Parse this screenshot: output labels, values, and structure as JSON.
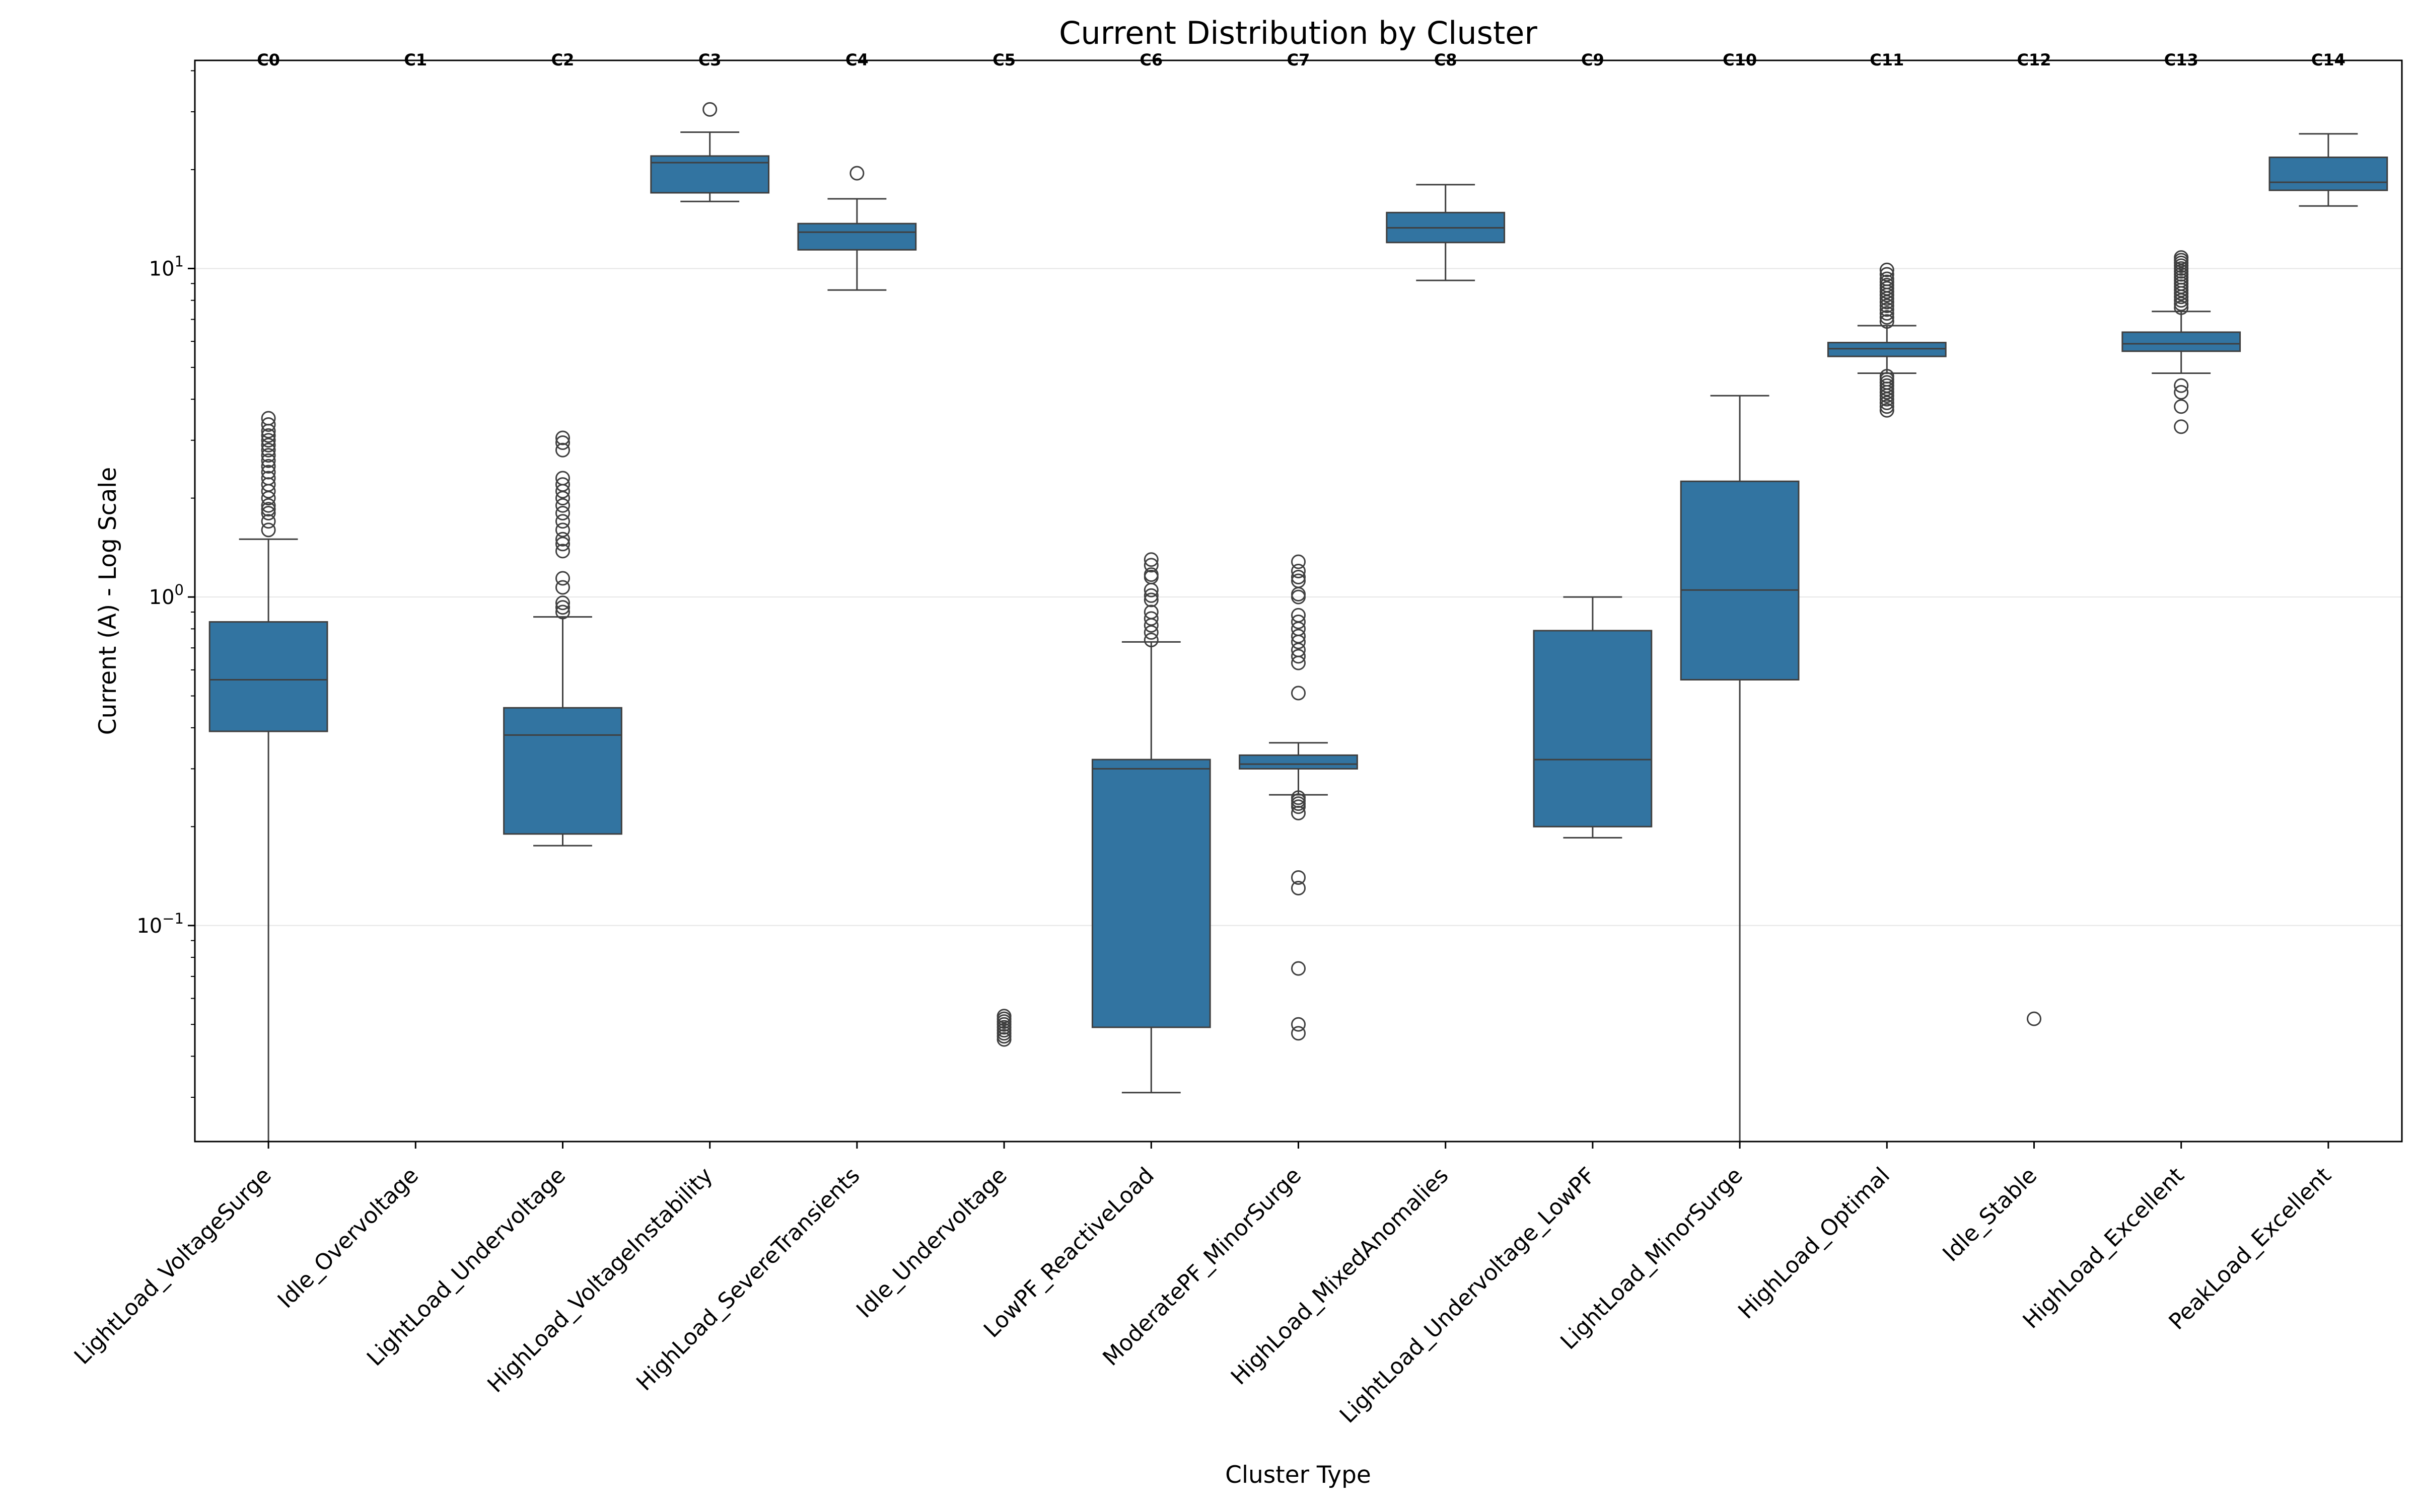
{
  "chart_data": {
    "type": "box",
    "title": "Current Distribution by Cluster",
    "xlabel": "Cluster Type",
    "ylabel": "Current (A) - Log Scale",
    "yscale": "log",
    "ylim": [
      0.022,
      43
    ],
    "yticks": [
      {
        "value": 0.1,
        "base": "10",
        "exp": "−1"
      },
      {
        "value": 1,
        "base": "10",
        "exp": "0"
      },
      {
        "value": 10,
        "base": "10",
        "exp": "1"
      }
    ],
    "grid": "horizontal",
    "box_color": "#3274a1",
    "categories": [
      "LightLoad_VoltageSurge",
      "Idle_Overvoltage",
      "LightLoad_Undervoltage",
      "HighLoad_VoltageInstability",
      "HighLoad_SevereTransients",
      "Idle_Undervoltage",
      "LowPF_ReactiveLoad",
      "ModeratePF_MinorSurge",
      "HighLoad_MixedAnomalies",
      "LightLoad_Undervoltage_LowPF",
      "LightLoad_MinorSurge",
      "HighLoad_Optimal",
      "Idle_Stable",
      "HighLoad_Excellent",
      "PeakLoad_Excellent"
    ],
    "cluster_labels": [
      "C0",
      "C1",
      "C2",
      "C3",
      "C4",
      "C5",
      "C6",
      "C7",
      "C8",
      "C9",
      "C10",
      "C11",
      "C12",
      "C13",
      "C14"
    ],
    "boxes": [
      {
        "whislo": 0.022,
        "q1": 0.39,
        "median": 0.56,
        "q3": 0.84,
        "whishi": 1.5,
        "fliers": [
          1.6,
          1.7,
          1.8,
          1.85,
          1.9,
          2.0,
          2.1,
          2.2,
          2.3,
          2.4,
          2.5,
          2.6,
          2.7,
          2.8,
          2.9,
          3.0,
          3.1,
          3.2,
          3.35,
          3.5
        ]
      },
      null,
      {
        "whislo": 0.175,
        "q1": 0.19,
        "median": 0.38,
        "q3": 0.46,
        "whishi": 0.87,
        "fliers": [
          0.9,
          0.93,
          0.96,
          1.07,
          1.14,
          1.38,
          1.45,
          1.5,
          1.6,
          1.7,
          1.8,
          1.9,
          2.0,
          2.1,
          2.2,
          2.3,
          2.8,
          2.95,
          3.05
        ]
      },
      {
        "whislo": 16.0,
        "q1": 17.0,
        "median": 21.0,
        "q3": 22.0,
        "whishi": 26.0,
        "fliers": [
          30.5
        ]
      },
      {
        "whislo": 8.6,
        "q1": 11.4,
        "median": 12.9,
        "q3": 13.7,
        "whishi": 16.3,
        "fliers": [
          19.5
        ]
      },
      {
        "whislo": null,
        "q1": null,
        "median": null,
        "q3": null,
        "whishi": null,
        "fliers": [
          0.045,
          0.046,
          0.047,
          0.048,
          0.049,
          0.05,
          0.051,
          0.052,
          0.053
        ]
      },
      {
        "whislo": 0.031,
        "q1": 0.049,
        "median": 0.3,
        "q3": 0.32,
        "whishi": 0.73,
        "fliers": [
          0.74,
          0.78,
          0.82,
          0.86,
          0.9,
          0.98,
          1.01,
          1.05,
          1.15,
          1.17,
          1.25,
          1.3
        ]
      },
      {
        "whislo": 0.25,
        "q1": 0.3,
        "median": 0.31,
        "q3": 0.33,
        "whishi": 0.36,
        "fliers": [
          0.047,
          0.05,
          0.074,
          0.13,
          0.14,
          0.22,
          0.23,
          0.235,
          0.24,
          0.245,
          0.51,
          0.63,
          0.66,
          0.69,
          0.73,
          0.76,
          0.8,
          0.84,
          0.88,
          1.0,
          1.02,
          1.12,
          1.15,
          1.2,
          1.28
        ]
      },
      {
        "whislo": 9.2,
        "q1": 12.0,
        "median": 13.3,
        "q3": 14.8,
        "whishi": 18.0,
        "fliers": []
      },
      {
        "whislo": 0.185,
        "q1": 0.2,
        "median": 0.32,
        "q3": 0.79,
        "whishi": 1.0,
        "fliers": []
      },
      {
        "whislo": 0.022,
        "q1": 0.56,
        "median": 1.05,
        "q3": 2.25,
        "whishi": 4.1,
        "fliers": []
      },
      {
        "whislo": 4.8,
        "q1": 5.4,
        "median": 5.7,
        "q3": 5.95,
        "whishi": 6.7,
        "fliers": [
          3.7,
          3.8,
          3.9,
          4.0,
          4.1,
          4.2,
          4.3,
          4.4,
          4.5,
          4.6,
          4.7,
          6.9,
          7.1,
          7.3,
          7.5,
          7.7,
          7.9,
          8.1,
          8.3,
          8.5,
          8.7,
          8.9,
          9.1,
          9.3,
          9.6,
          9.9
        ]
      },
      {
        "whislo": null,
        "q1": null,
        "median": null,
        "q3": null,
        "whishi": null,
        "fliers": [
          0.052
        ]
      },
      {
        "whislo": 4.8,
        "q1": 5.6,
        "median": 5.9,
        "q3": 6.4,
        "whishi": 7.4,
        "fliers": [
          3.3,
          3.8,
          4.2,
          4.4,
          7.6,
          7.8,
          8.0,
          8.2,
          8.4,
          8.6,
          8.8,
          9.0,
          9.2,
          9.4,
          9.6,
          9.8,
          10.0,
          10.2,
          10.4,
          10.6,
          10.8
        ]
      },
      {
        "whislo": 15.5,
        "q1": 17.3,
        "median": 18.3,
        "q3": 21.8,
        "whishi": 25.7,
        "fliers": []
      }
    ]
  }
}
